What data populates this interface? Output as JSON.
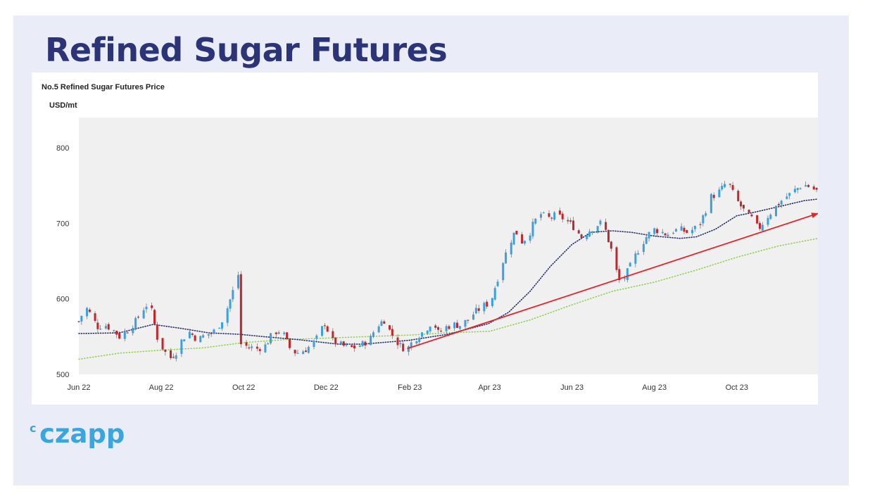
{
  "slide": {
    "title": "Refined Sugar Futures"
  },
  "brand": {
    "logo_text": "czapp"
  },
  "colors": {
    "title": "#2b3477",
    "brand": "#3aa6dd",
    "up": "#3aa0e0",
    "down": "#c0262b",
    "ma_short": "#1f2a6b",
    "ma_long": "#8fd14f",
    "trend": "#e0262b",
    "plot_bg": "#f0f0f0"
  },
  "chart_data": {
    "type": "candlestick",
    "title": "No.5 Refined Sugar Futures Price",
    "ylabel": "USD/mt",
    "ylim": [
      500,
      840
    ],
    "yticks": [
      500,
      600,
      700,
      800
    ],
    "xticks": [
      "Jun 22",
      "Aug 22",
      "Oct 22",
      "Dec 22",
      "Feb 23",
      "Apr 23",
      "Jun 23",
      "Aug 23",
      "Oct 23"
    ],
    "x_start": "2022-06-01",
    "x_end": "2023-11-30",
    "price_path": [
      [
        "2022-06-01",
        570
      ],
      [
        "2022-06-06",
        590
      ],
      [
        "2022-06-10",
        578
      ],
      [
        "2022-06-15",
        563
      ],
      [
        "2022-06-20",
        566
      ],
      [
        "2022-06-27",
        558
      ],
      [
        "2022-07-01",
        550
      ],
      [
        "2022-07-08",
        560
      ],
      [
        "2022-07-13",
        570
      ],
      [
        "2022-07-18",
        585
      ],
      [
        "2022-07-22",
        594
      ],
      [
        "2022-07-26",
        580
      ],
      [
        "2022-07-28",
        552
      ],
      [
        "2022-08-03",
        532
      ],
      [
        "2022-08-07",
        520
      ],
      [
        "2022-08-12",
        530
      ],
      [
        "2022-08-17",
        548
      ],
      [
        "2022-08-22",
        556
      ],
      [
        "2022-08-28",
        545
      ],
      [
        "2022-09-02",
        552
      ],
      [
        "2022-09-08",
        555
      ],
      [
        "2022-09-14",
        568
      ],
      [
        "2022-09-19",
        588
      ],
      [
        "2022-09-23",
        610
      ],
      [
        "2022-09-27",
        632
      ],
      [
        "2022-09-29",
        540
      ],
      [
        "2022-10-05",
        536
      ],
      [
        "2022-10-11",
        534
      ],
      [
        "2022-10-17",
        538
      ],
      [
        "2022-10-21",
        550
      ],
      [
        "2022-10-26",
        558
      ],
      [
        "2022-10-31",
        552
      ],
      [
        "2022-11-04",
        535
      ],
      [
        "2022-11-09",
        528
      ],
      [
        "2022-11-15",
        532
      ],
      [
        "2022-11-21",
        540
      ],
      [
        "2022-11-25",
        550
      ],
      [
        "2022-11-30",
        568
      ],
      [
        "2022-12-05",
        545
      ],
      [
        "2022-12-10",
        540
      ],
      [
        "2022-12-16",
        536
      ],
      [
        "2022-12-21",
        535
      ],
      [
        "2022-12-28",
        540
      ],
      [
        "2023-01-03",
        548
      ],
      [
        "2023-01-06",
        560
      ],
      [
        "2023-01-10",
        568
      ],
      [
        "2023-01-13",
        572
      ],
      [
        "2023-01-17",
        558
      ],
      [
        "2023-01-21",
        546
      ],
      [
        "2023-01-26",
        536
      ],
      [
        "2023-01-30",
        533
      ],
      [
        "2023-02-03",
        544
      ],
      [
        "2023-02-08",
        552
      ],
      [
        "2023-02-14",
        562
      ],
      [
        "2023-02-18",
        572
      ],
      [
        "2023-02-22",
        555
      ],
      [
        "2023-02-27",
        562
      ],
      [
        "2023-03-05",
        566
      ],
      [
        "2023-03-10",
        565
      ],
      [
        "2023-03-16",
        572
      ],
      [
        "2023-03-21",
        582
      ],
      [
        "2023-03-27",
        590
      ],
      [
        "2023-04-02",
        596
      ],
      [
        "2023-04-06",
        622
      ],
      [
        "2023-04-11",
        650
      ],
      [
        "2023-04-15",
        670
      ],
      [
        "2023-04-20",
        690
      ],
      [
        "2023-04-25",
        676
      ],
      [
        "2023-04-30",
        684
      ],
      [
        "2023-05-04",
        702
      ],
      [
        "2023-05-09",
        712
      ],
      [
        "2023-05-14",
        706
      ],
      [
        "2023-05-19",
        710
      ],
      [
        "2023-05-24",
        708
      ],
      [
        "2023-05-29",
        702
      ],
      [
        "2023-06-03",
        694
      ],
      [
        "2023-06-08",
        682
      ],
      [
        "2023-06-12",
        688
      ],
      [
        "2023-06-17",
        695
      ],
      [
        "2023-06-22",
        700
      ],
      [
        "2023-06-26",
        690
      ],
      [
        "2023-06-30",
        665
      ],
      [
        "2023-07-04",
        636
      ],
      [
        "2023-07-07",
        618
      ],
      [
        "2023-07-11",
        632
      ],
      [
        "2023-07-16",
        650
      ],
      [
        "2023-07-21",
        668
      ],
      [
        "2023-07-26",
        682
      ],
      [
        "2023-07-31",
        692
      ],
      [
        "2023-08-05",
        690
      ],
      [
        "2023-08-10",
        685
      ],
      [
        "2023-08-15",
        690
      ],
      [
        "2023-08-20",
        692
      ],
      [
        "2023-08-25",
        688
      ],
      [
        "2023-08-30",
        692
      ],
      [
        "2023-09-04",
        700
      ],
      [
        "2023-09-08",
        718
      ],
      [
        "2023-09-12",
        735
      ],
      [
        "2023-09-17",
        740
      ],
      [
        "2023-09-21",
        748
      ],
      [
        "2023-09-24",
        758
      ],
      [
        "2023-09-28",
        740
      ],
      [
        "2023-10-03",
        725
      ],
      [
        "2023-10-08",
        712
      ],
      [
        "2023-10-13",
        705
      ],
      [
        "2023-10-17",
        692
      ],
      [
        "2023-10-20",
        700
      ],
      [
        "2023-10-25",
        712
      ],
      [
        "2023-10-30",
        722
      ],
      [
        "2023-11-04",
        732
      ],
      [
        "2023-11-09",
        738
      ],
      [
        "2023-11-14",
        745
      ],
      [
        "2023-11-19",
        752
      ],
      [
        "2023-11-24",
        748
      ],
      [
        "2023-11-30",
        742
      ]
    ],
    "moving_average_short": [
      [
        "2022-06-01",
        554
      ],
      [
        "2022-07-01",
        555
      ],
      [
        "2022-07-26",
        566
      ],
      [
        "2022-08-15",
        561
      ],
      [
        "2022-09-05",
        555
      ],
      [
        "2022-09-28",
        553
      ],
      [
        "2022-10-15",
        550
      ],
      [
        "2022-11-10",
        546
      ],
      [
        "2022-12-10",
        540
      ],
      [
        "2022-12-28",
        540
      ],
      [
        "2023-01-31",
        545
      ],
      [
        "2023-03-01",
        553
      ],
      [
        "2023-03-31",
        567
      ],
      [
        "2023-04-15",
        582
      ],
      [
        "2023-05-01",
        610
      ],
      [
        "2023-05-16",
        643
      ],
      [
        "2023-06-01",
        672
      ],
      [
        "2023-06-15",
        688
      ],
      [
        "2023-07-01",
        690
      ],
      [
        "2023-07-15",
        688
      ],
      [
        "2023-08-01",
        683
      ],
      [
        "2023-08-20",
        680
      ],
      [
        "2023-09-01",
        682
      ],
      [
        "2023-09-15",
        692
      ],
      [
        "2023-10-01",
        710
      ],
      [
        "2023-10-15",
        715
      ],
      [
        "2023-11-01",
        722
      ],
      [
        "2023-11-20",
        730
      ],
      [
        "2023-11-30",
        732
      ]
    ],
    "moving_average_long": [
      [
        "2022-06-01",
        520
      ],
      [
        "2022-07-01",
        528
      ],
      [
        "2022-08-01",
        532
      ],
      [
        "2022-09-01",
        535
      ],
      [
        "2022-10-01",
        542
      ],
      [
        "2022-11-01",
        546
      ],
      [
        "2022-12-01",
        548
      ],
      [
        "2023-01-01",
        550
      ],
      [
        "2023-02-01",
        552
      ],
      [
        "2023-03-01",
        555
      ],
      [
        "2023-04-01",
        557
      ],
      [
        "2023-05-01",
        572
      ],
      [
        "2023-06-01",
        592
      ],
      [
        "2023-07-01",
        610
      ],
      [
        "2023-08-01",
        622
      ],
      [
        "2023-09-01",
        638
      ],
      [
        "2023-10-01",
        655
      ],
      [
        "2023-11-01",
        670
      ],
      [
        "2023-11-30",
        680
      ]
    ],
    "trend_line": [
      [
        "2023-01-30",
        534
      ],
      [
        "2023-11-30",
        713
      ]
    ],
    "grid": false,
    "legend": "none"
  }
}
